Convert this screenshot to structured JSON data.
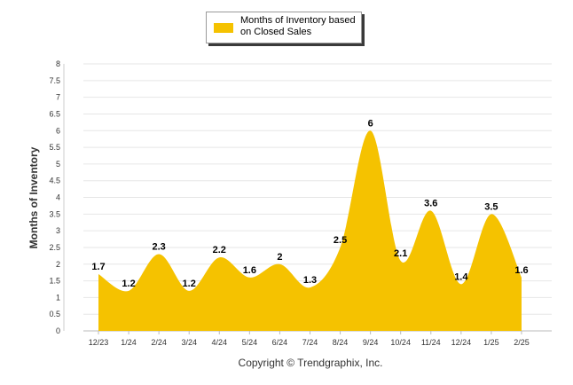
{
  "chart_data": {
    "type": "area",
    "categories": [
      "12/23",
      "1/24",
      "2/24",
      "3/24",
      "4/24",
      "5/24",
      "6/24",
      "7/24",
      "8/24",
      "9/24",
      "10/24",
      "11/24",
      "12/24",
      "1/25",
      "2/25"
    ],
    "series": [
      {
        "name": "Months of Inventory based on Closed Sales",
        "values": [
          1.7,
          1.2,
          2.3,
          1.2,
          2.2,
          1.6,
          2,
          1.3,
          2.5,
          6,
          2.1,
          3.6,
          1.4,
          3.5,
          1.6
        ],
        "color": "#F5C200"
      }
    ],
    "ylabel": "Months of Inventory",
    "ylim": [
      0,
      8
    ],
    "yticks": [
      "0",
      "0.5",
      "1",
      "1.5",
      "2",
      "2.5",
      "3",
      "3.5",
      "4",
      "4.5",
      "5",
      "5.5",
      "6",
      "6.5",
      "7",
      "7.5",
      "8"
    ],
    "grid": true,
    "legend_position": "top-center",
    "footer": "Copyright © Trendgraphix, Inc."
  }
}
